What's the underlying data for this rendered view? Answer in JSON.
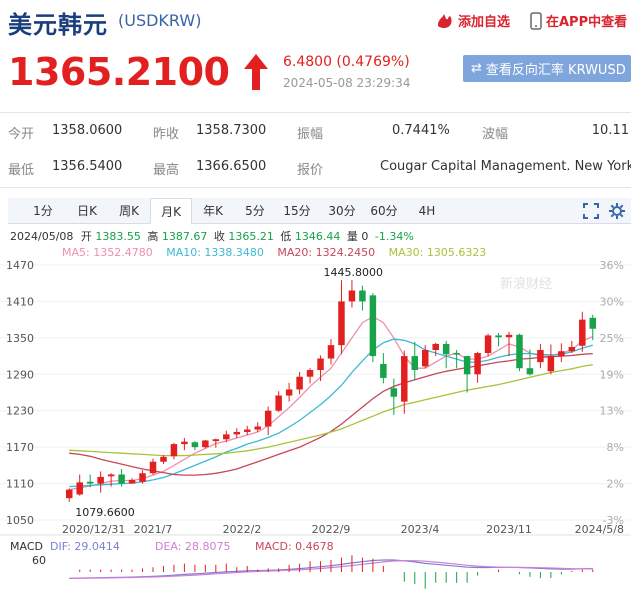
{
  "header": {
    "title": "美元韩元",
    "code": "(USDKRW)",
    "add_fav": "添加自选",
    "app_view": "在APP中查看"
  },
  "quote": {
    "price": "1365.2100",
    "change": "6.4800 (0.4769%)",
    "time": "2024-05-08 23:29:34",
    "reverse_button": "查看反向汇率 KRWUSD"
  },
  "stats": {
    "open_label": "今开",
    "open": "1358.0600",
    "prev_label": "昨收",
    "prev": "1358.7300",
    "amp_label": "振幅",
    "amp": "0.7441%",
    "wave_label": "波幅",
    "wave": "10.11",
    "low_label": "最低",
    "low": "1356.5400",
    "high_label": "最高",
    "high": "1366.6500",
    "quote_label": "报价",
    "quoter": "Cougar Capital Management. New York"
  },
  "tabs": [
    "1分",
    "日K",
    "周K",
    "月K",
    "年K",
    "5分",
    "15分",
    "30分",
    "60分",
    "4H"
  ],
  "active_tab": "月K",
  "info": {
    "date": "2024/05/08",
    "open_label": "开",
    "open": "1383.55",
    "high_label": "高",
    "high": "1387.67",
    "close_label": "收",
    "close": "1365.21",
    "low_label": "低",
    "low": "1346.44",
    "vol_label": "量",
    "vol": "0",
    "pct": "-1.34%"
  },
  "ma": {
    "ma5": "MA5: 1352.4780",
    "ma10": "MA10: 1338.3480",
    "ma20": "MA20: 1324.2450",
    "ma30": "MA30: 1305.6323"
  },
  "macd": {
    "label": "MACD",
    "dif": "DIF: 29.0414",
    "dea": "DEA: 28.8075",
    "macd": "MACD: 0.4678",
    "axis": "60"
  },
  "watermark": "新浪财经",
  "colors": {
    "up": "#e22020",
    "down": "#16a34a",
    "ma5": "#f08fa8",
    "ma10": "#3cb9d6",
    "ma20": "#c8465a",
    "ma30": "#a8c23a"
  },
  "chart_data": {
    "type": "candlestick",
    "y_ticks": [
      "1470",
      "1410",
      "1350",
      "1290",
      "1230",
      "1170",
      "1110",
      "1050"
    ],
    "pct_ticks": [
      "36%",
      "30%",
      "25%",
      "19%",
      "13%",
      "8%",
      "2%",
      "-3%"
    ],
    "x_labels": [
      "2020/12/31",
      "2021/7",
      "2022/2",
      "2022/9",
      "2023/4",
      "2023/11",
      "2024/5/8"
    ],
    "ylim": [
      1050,
      1470
    ],
    "annotations": [
      {
        "text": "1445.8000"
      },
      {
        "text": "1079.6600"
      }
    ],
    "candles": [
      {
        "o": 1086,
        "c": 1100,
        "h": 1102,
        "l": 1080
      },
      {
        "o": 1092,
        "c": 1112,
        "h": 1125,
        "l": 1090
      },
      {
        "o": 1113,
        "c": 1110,
        "h": 1125,
        "l": 1104
      },
      {
        "o": 1110,
        "c": 1121,
        "h": 1130,
        "l": 1095
      },
      {
        "o": 1122,
        "c": 1125,
        "h": 1127,
        "l": 1105
      },
      {
        "o": 1125,
        "c": 1110,
        "h": 1134,
        "l": 1105
      },
      {
        "o": 1110,
        "c": 1116,
        "h": 1119,
        "l": 1110
      },
      {
        "o": 1113,
        "c": 1127,
        "h": 1132,
        "l": 1110
      },
      {
        "o": 1127,
        "c": 1146,
        "h": 1151,
        "l": 1125
      },
      {
        "o": 1146,
        "c": 1154,
        "h": 1157,
        "l": 1142
      },
      {
        "o": 1155,
        "c": 1175,
        "h": 1177,
        "l": 1150
      },
      {
        "o": 1175,
        "c": 1179,
        "h": 1185,
        "l": 1165
      },
      {
        "o": 1178,
        "c": 1170,
        "h": 1180,
        "l": 1165
      },
      {
        "o": 1170,
        "c": 1181,
        "h": 1182,
        "l": 1168
      },
      {
        "o": 1180,
        "c": 1183,
        "h": 1184,
        "l": 1169
      },
      {
        "o": 1183,
        "c": 1191,
        "h": 1197,
        "l": 1178
      },
      {
        "o": 1191,
        "c": 1195,
        "h": 1201,
        "l": 1185
      },
      {
        "o": 1195,
        "c": 1199,
        "h": 1205,
        "l": 1190
      },
      {
        "o": 1199,
        "c": 1204,
        "h": 1211,
        "l": 1195
      },
      {
        "o": 1204,
        "c": 1230,
        "h": 1237,
        "l": 1190
      },
      {
        "o": 1230,
        "c": 1255,
        "h": 1262,
        "l": 1228
      },
      {
        "o": 1255,
        "c": 1265,
        "h": 1276,
        "l": 1245
      },
      {
        "o": 1265,
        "c": 1286,
        "h": 1294,
        "l": 1257
      },
      {
        "o": 1286,
        "c": 1297,
        "h": 1300,
        "l": 1275
      },
      {
        "o": 1297,
        "c": 1316,
        "h": 1321,
        "l": 1279
      },
      {
        "o": 1316,
        "c": 1338,
        "h": 1348,
        "l": 1306
      },
      {
        "o": 1338,
        "c": 1410,
        "h": 1445,
        "l": 1323
      },
      {
        "o": 1410,
        "c": 1428,
        "h": 1445,
        "l": 1400
      },
      {
        "o": 1428,
        "c": 1410,
        "h": 1436,
        "l": 1395
      },
      {
        "o": 1420,
        "c": 1320,
        "h": 1424,
        "l": 1310
      },
      {
        "o": 1307,
        "c": 1284,
        "h": 1325,
        "l": 1275
      },
      {
        "o": 1267,
        "c": 1253,
        "h": 1283,
        "l": 1223
      },
      {
        "o": 1245,
        "c": 1320,
        "h": 1329,
        "l": 1225
      },
      {
        "o": 1320,
        "c": 1297,
        "h": 1343,
        "l": 1280
      },
      {
        "o": 1303,
        "c": 1330,
        "h": 1338,
        "l": 1300
      },
      {
        "o": 1330,
        "c": 1340,
        "h": 1342,
        "l": 1320
      },
      {
        "o": 1340,
        "c": 1323,
        "h": 1345,
        "l": 1300
      },
      {
        "o": 1325,
        "c": 1323,
        "h": 1330,
        "l": 1300
      },
      {
        "o": 1320,
        "c": 1290,
        "h": 1320,
        "l": 1260
      },
      {
        "o": 1290,
        "c": 1325,
        "h": 1327,
        "l": 1276
      },
      {
        "o": 1325,
        "c": 1354,
        "h": 1357,
        "l": 1320
      },
      {
        "o": 1354,
        "c": 1351,
        "h": 1358,
        "l": 1336
      },
      {
        "o": 1351,
        "c": 1355,
        "h": 1360,
        "l": 1320
      },
      {
        "o": 1355,
        "c": 1300,
        "h": 1357,
        "l": 1295
      },
      {
        "o": 1300,
        "c": 1290,
        "h": 1331,
        "l": 1288
      },
      {
        "o": 1310,
        "c": 1330,
        "h": 1340,
        "l": 1300
      },
      {
        "o": 1295,
        "c": 1320,
        "h": 1339,
        "l": 1290
      },
      {
        "o": 1320,
        "c": 1328,
        "h": 1341,
        "l": 1310
      },
      {
        "o": 1328,
        "c": 1335,
        "h": 1345,
        "l": 1325
      },
      {
        "o": 1337,
        "c": 1380,
        "h": 1393,
        "l": 1327
      },
      {
        "o": 1383,
        "c": 1365,
        "h": 1388,
        "l": 1346
      }
    ],
    "ma_lines": [
      {
        "name": "MA5",
        "values": [
          1100,
          1103,
          1106,
          1110,
          1114,
          1115,
          1115,
          1118,
          1124,
          1130,
          1140,
          1150,
          1160,
          1168,
          1176,
          1180,
          1185,
          1190,
          1195,
          1205,
          1220,
          1235,
          1252,
          1270,
          1285,
          1300,
          1325,
          1350,
          1375,
          1385,
          1375,
          1350,
          1320,
          1300,
          1300,
          1310,
          1320,
          1325,
          1315,
          1315,
          1320,
          1330,
          1340,
          1335,
          1325,
          1320,
          1320,
          1325,
          1330,
          1345,
          1352
        ]
      },
      {
        "name": "MA10",
        "values": [
          1105,
          1106,
          1107,
          1108,
          1109,
          1110,
          1111,
          1113,
          1116,
          1120,
          1126,
          1133,
          1140,
          1147,
          1154,
          1162,
          1168,
          1175,
          1180,
          1186,
          1193,
          1203,
          1214,
          1227,
          1240,
          1255,
          1272,
          1293,
          1312,
          1330,
          1342,
          1348,
          1346,
          1340,
          1330,
          1325,
          1320,
          1315,
          1310,
          1310,
          1313,
          1318,
          1322,
          1324,
          1324,
          1323,
          1322,
          1323,
          1327,
          1333,
          1338
        ]
      },
      {
        "name": "MA20",
        "values": [
          1160,
          1158,
          1155,
          1150,
          1146,
          1142,
          1138,
          1134,
          1131,
          1128,
          1125,
          1124,
          1124,
          1125,
          1127,
          1130,
          1134,
          1140,
          1146,
          1152,
          1158,
          1164,
          1170,
          1178,
          1186,
          1196,
          1208,
          1222,
          1236,
          1250,
          1262,
          1270,
          1276,
          1281,
          1286,
          1291,
          1295,
          1298,
          1301,
          1304,
          1307,
          1310,
          1312,
          1315,
          1316,
          1318,
          1319,
          1320,
          1321,
          1323,
          1324
        ]
      },
      {
        "name": "MA30",
        "values": [
          1165,
          1164,
          1163,
          1162,
          1161,
          1160,
          1159,
          1158,
          1157,
          1156,
          1156,
          1156,
          1157,
          1158,
          1159,
          1160,
          1162,
          1164,
          1167,
          1170,
          1174,
          1178,
          1182,
          1186,
          1190,
          1195,
          1200,
          1207,
          1214,
          1221,
          1228,
          1234,
          1240,
          1244,
          1248,
          1252,
          1256,
          1260,
          1264,
          1267,
          1270,
          1273,
          1277,
          1281,
          1285,
          1289,
          1293,
          1296,
          1299,
          1303,
          1306
        ]
      }
    ]
  }
}
